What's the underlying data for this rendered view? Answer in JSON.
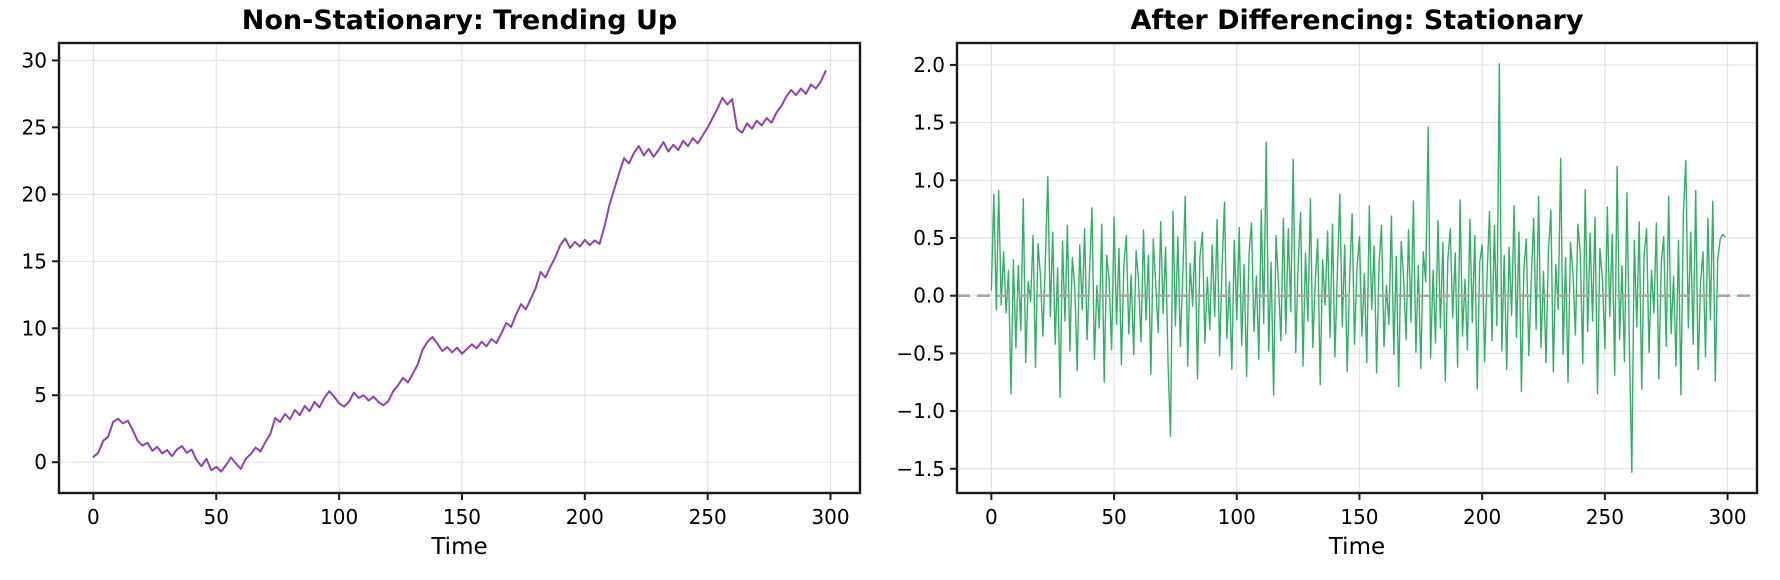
{
  "figure": {
    "background": "#ffffff",
    "grid_color": "#e4e4e4",
    "spine_color": "#1a1a1a",
    "tick_color": "#1a1a1a",
    "text_color": "#000000"
  },
  "chart_data": [
    {
      "type": "line",
      "title": "Non-Stationary: Trending Up",
      "xlabel": "Time",
      "ylabel": "",
      "line_color": "#8e44ad",
      "line_width": 2.0,
      "grid": true,
      "legend": "none",
      "xlim": [
        -14,
        312
      ],
      "ylim": [
        -2.3,
        31.3
      ],
      "x_tick_values": [
        0,
        50,
        100,
        150,
        200,
        250,
        300
      ],
      "x_tick_labels": [
        "0",
        "50",
        "100",
        "150",
        "200",
        "250",
        "300"
      ],
      "y_tick_values": [
        0,
        5,
        10,
        15,
        20,
        25,
        30
      ],
      "y_tick_labels": [
        "0",
        "5",
        "10",
        "15",
        "20",
        "25",
        "30"
      ],
      "x_start": 0,
      "x_step": 2,
      "values": [
        0.4,
        0.7,
        1.6,
        1.9,
        3.0,
        3.25,
        2.9,
        3.1,
        2.4,
        1.6,
        1.25,
        1.45,
        0.85,
        1.15,
        0.65,
        0.9,
        0.45,
        0.95,
        1.2,
        0.7,
        0.95,
        0.15,
        -0.3,
        0.25,
        -0.6,
        -0.35,
        -0.7,
        -0.2,
        0.35,
        -0.1,
        -0.5,
        0.25,
        0.6,
        1.1,
        0.8,
        1.5,
        2.1,
        3.3,
        3.0,
        3.6,
        3.2,
        3.9,
        3.5,
        4.2,
        3.8,
        4.5,
        4.1,
        4.8,
        5.3,
        4.9,
        4.4,
        4.15,
        4.5,
        5.2,
        4.8,
        5.0,
        4.6,
        4.9,
        4.5,
        4.25,
        4.55,
        5.3,
        5.75,
        6.3,
        5.95,
        6.6,
        7.3,
        8.4,
        9.0,
        9.35,
        8.85,
        8.3,
        8.6,
        8.2,
        8.55,
        8.1,
        8.45,
        8.8,
        8.5,
        9.0,
        8.65,
        9.2,
        8.9,
        9.6,
        10.4,
        10.1,
        11.0,
        11.8,
        11.4,
        12.2,
        13.0,
        14.2,
        13.8,
        14.6,
        15.3,
        16.2,
        16.7,
        16.0,
        16.45,
        16.1,
        16.6,
        16.2,
        16.55,
        16.3,
        17.6,
        19.2,
        20.4,
        21.6,
        22.7,
        22.3,
        23.1,
        23.6,
        22.9,
        23.4,
        22.8,
        23.3,
        23.9,
        23.2,
        23.7,
        23.3,
        24.0,
        23.6,
        24.2,
        23.8,
        24.4,
        25.0,
        25.7,
        26.4,
        27.2,
        26.7,
        27.1,
        24.9,
        24.6,
        25.3,
        24.9,
        25.5,
        25.15,
        25.7,
        25.35,
        26.1,
        26.6,
        27.3,
        27.8,
        27.4,
        27.9,
        27.5,
        28.2,
        27.9,
        28.4,
        29.2
      ]
    },
    {
      "type": "line",
      "title": "After Differencing: Stationary",
      "xlabel": "Time",
      "ylabel": "",
      "line_color": "#33af66",
      "line_width": 1.4,
      "grid": true,
      "legend": "none",
      "zero_line": {
        "value": 0.0,
        "color": "#a8a8a8",
        "style": "dashed",
        "width": 2.6
      },
      "xlim": [
        -14,
        312
      ],
      "ylim": [
        -1.71,
        2.19
      ],
      "x_tick_values": [
        0,
        50,
        100,
        150,
        200,
        250,
        300
      ],
      "x_tick_labels": [
        "0",
        "50",
        "100",
        "150",
        "200",
        "250",
        "300"
      ],
      "y_tick_values": [
        -1.5,
        -1.0,
        -0.5,
        0.0,
        0.5,
        1.0,
        1.5,
        2.0
      ],
      "y_tick_labels": [
        "−1.5",
        "−1.0",
        "−0.5",
        "0.0",
        "0.5",
        "1.0",
        "1.5",
        "2.0"
      ],
      "x_start": 0,
      "x_step": 1,
      "values": [
        0.05,
        0.88,
        -0.12,
        0.91,
        -0.08,
        0.38,
        -0.15,
        0.22,
        -0.85,
        0.31,
        -0.45,
        0.26,
        -0.3,
        0.84,
        -0.58,
        0.12,
        -0.05,
        0.52,
        -0.62,
        0.45,
        0.18,
        -0.35,
        0.29,
        1.03,
        -0.18,
        0.55,
        -0.42,
        0.24,
        -0.88,
        0.47,
        -0.22,
        0.61,
        -0.48,
        0.33,
        0.07,
        -0.65,
        0.44,
        -0.12,
        0.58,
        -0.38,
        0.21,
        0.76,
        -0.55,
        0.09,
        -0.28,
        0.62,
        -0.75,
        0.35,
        0.14,
        -0.47,
        0.68,
        -0.25,
        0.41,
        -0.6,
        0.27,
        0.52,
        -0.33,
        0.18,
        -0.51,
        0.39,
        0.12,
        -0.4,
        0.57,
        -0.21,
        0.35,
        -0.68,
        0.49,
        0.08,
        -0.32,
        0.64,
        -0.15,
        0.42,
        -0.57,
        -1.22,
        0.73,
        -0.26,
        0.51,
        -0.44,
        0.19,
        0.86,
        -0.61,
        0.28,
        -0.09,
        0.47,
        -0.72,
        0.33,
        0.55,
        -0.41,
        0.16,
        -0.29,
        0.44,
        -0.18,
        0.66,
        -0.52,
        0.23,
        0.81,
        -0.37,
        0.12,
        -0.64,
        0.48,
        -0.21,
        0.59,
        -0.43,
        0.27,
        -0.7,
        0.36,
        0.63,
        -0.31,
        0.17,
        -0.55,
        0.74,
        -0.24,
        1.33,
        -0.48,
        0.29,
        -0.86,
        0.52,
        0.11,
        -0.39,
        0.67,
        -0.33,
        0.58,
        -0.14,
        1.18,
        -0.49,
        0.26,
        0.72,
        -0.61,
        0.37,
        -0.22,
        0.84,
        -0.45,
        0.13,
        0.49,
        -0.77,
        0.31,
        -0.08,
        0.56,
        -0.36,
        0.62,
        -0.53,
        0.21,
        0.88,
        -0.27,
        0.44,
        -0.66,
        0.15,
        0.71,
        -0.42,
        0.24,
        0.51,
        -0.35,
        0.19,
        -0.58,
        0.78,
        -0.12,
        0.43,
        -0.67,
        0.28,
        0.61,
        -0.44,
        0.09,
        -0.25,
        0.69,
        -0.51,
        0.34,
        -0.79,
        0.47,
        0.16,
        -0.38,
        0.57,
        -0.23,
        0.82,
        -0.49,
        0.26,
        -0.63,
        0.38,
        0.12,
        1.46,
        -0.54,
        0.22,
        -0.41,
        0.65,
        -0.28,
        0.46,
        -0.74,
        0.31,
        0.58,
        -0.19,
        0.37,
        -0.62,
        0.83,
        -0.35,
        0.14,
        -0.47,
        0.66,
        -0.23,
        0.52,
        -0.81,
        0.29,
        0.44,
        -0.57,
        0.18,
        0.73,
        -0.39,
        0.61,
        -0.26,
        2.01,
        -0.48,
        0.35,
        -0.64,
        0.42,
        -0.17,
        0.78,
        -0.36,
        0.55,
        -0.83,
        0.24,
        0.49,
        -0.52,
        0.13,
        0.67,
        -0.29,
        0.86,
        -0.45,
        0.21,
        -0.58,
        0.38,
        0.74,
        -0.66,
        0.27,
        -0.12,
        1.19,
        -0.51,
        0.33,
        -0.75,
        0.46,
        0.19,
        -0.34,
        0.62,
        0.37,
        -0.59,
        0.92,
        -0.31,
        0.54,
        -0.22,
        0.68,
        -0.85,
        0.41,
        0.15,
        -0.46,
        0.77,
        -0.18,
        0.53,
        -0.69,
        1.12,
        -0.38,
        0.26,
        -0.57,
        0.89,
        -0.43,
        -1.53,
        0.48,
        -0.27,
        0.64,
        -0.81,
        0.35,
        0.58,
        -0.49,
        0.22,
        -0.15,
        0.63,
        -0.72,
        0.29,
        0.51,
        -0.44,
        0.86,
        -0.33,
        0.17,
        -0.61,
        0.48,
        -0.86,
        0.72,
        1.17,
        -0.28,
        0.55,
        -0.42,
        0.91,
        -0.64,
        0.12,
        0.38,
        -0.53,
        0.67,
        -0.21,
        0.82,
        -0.74,
        0.31,
        0.49,
        0.53,
        0.51
      ]
    }
  ]
}
